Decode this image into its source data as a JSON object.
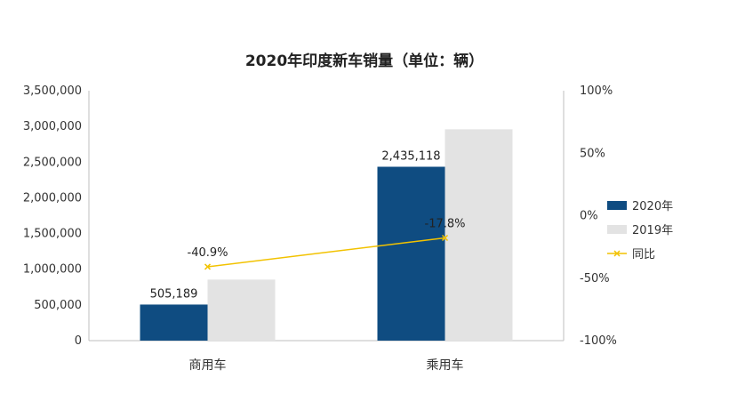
{
  "chart_data": {
    "type": "bar",
    "title": "2020年印度新车销量（单位：辆）",
    "categories": [
      "商用车",
      "乘用车"
    ],
    "series": [
      {
        "name": "2020年",
        "values": [
          505189,
          2435118
        ],
        "data_labels": [
          "505,189",
          "2,435,118"
        ],
        "color": "#0f4c81"
      },
      {
        "name": "2019年",
        "values": [
          855000,
          2960000
        ],
        "color": "#e3e3e3"
      }
    ],
    "line_series": {
      "name": "同比",
      "values": [
        -40.9,
        -17.8
      ],
      "data_labels": [
        "-40.9%",
        "-17.8%"
      ],
      "color": "#f2c200",
      "axis": "right"
    },
    "ylim": [
      0,
      3500000
    ],
    "y_ticks": [
      "0",
      "500,000",
      "1,000,000",
      "1,500,000",
      "2,000,000",
      "2,500,000",
      "3,000,000",
      "3,500,000"
    ],
    "y2lim": [
      -100,
      100
    ],
    "y2_ticks": [
      "-100%",
      "-50%",
      "0%",
      "50%",
      "100%"
    ],
    "legend_position": "right",
    "grid": false
  }
}
